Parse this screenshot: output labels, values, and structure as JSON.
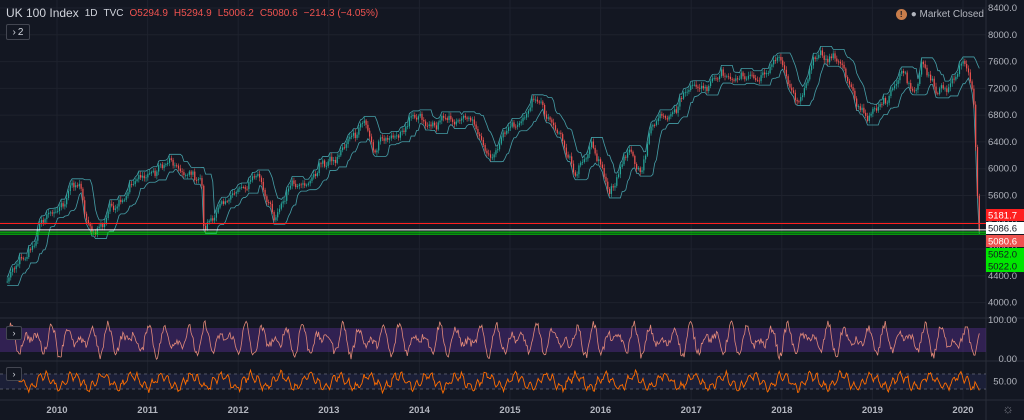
{
  "header": {
    "symbol": "UK 100 Index",
    "interval": "1D",
    "source": "TVC",
    "open": "O5294.9",
    "high": "H5294.9",
    "low": "L5006.2",
    "close": "C5080.6",
    "change": "−214.3 (−4.05%)",
    "collapse_count": "2"
  },
  "market_status": {
    "icon": "!",
    "label": "● Market Closed"
  },
  "colors": {
    "background": "#131722",
    "grid": "#1e222d",
    "up": "#26a69a",
    "down": "#ef5350",
    "channel": "#4fb7c0",
    "stoch_k": "#e38a7a",
    "stoch_band": "#4a2a7a",
    "macd": "#ff6d00"
  },
  "chart_data": [
    {
      "type": "candlestick",
      "title": "UK 100 Index · 1D · TVC",
      "x_ticks": [
        "2010",
        "2011",
        "2012",
        "2013",
        "2014",
        "2015",
        "2016",
        "2017",
        "2018",
        "2019",
        "2020"
      ],
      "y_ticks": [
        "4000.0",
        "4400.0",
        "4800.0",
        "5200.0",
        "5600.0",
        "6000.0",
        "6400.0",
        "6800.0",
        "7200.0",
        "7600.0",
        "8000.0",
        "8400.0"
      ],
      "ylim": [
        3800,
        8400
      ],
      "series_anchors": [
        {
          "t": 2009.45,
          "v": 4300
        },
        {
          "t": 2009.65,
          "v": 4700
        },
        {
          "t": 2009.85,
          "v": 5200
        },
        {
          "t": 2010.0,
          "v": 5400
        },
        {
          "t": 2010.15,
          "v": 5700
        },
        {
          "t": 2010.25,
          "v": 5700
        },
        {
          "t": 2010.35,
          "v": 5150
        },
        {
          "t": 2010.5,
          "v": 5100
        },
        {
          "t": 2010.6,
          "v": 5400
        },
        {
          "t": 2010.75,
          "v": 5650
        },
        {
          "t": 2010.9,
          "v": 5800
        },
        {
          "t": 2011.05,
          "v": 6000
        },
        {
          "t": 2011.3,
          "v": 6050
        },
        {
          "t": 2011.5,
          "v": 5900
        },
        {
          "t": 2011.6,
          "v": 5700
        },
        {
          "t": 2011.62,
          "v": 5100
        },
        {
          "t": 2011.75,
          "v": 5400
        },
        {
          "t": 2011.9,
          "v": 5500
        },
        {
          "t": 2012.0,
          "v": 5700
        },
        {
          "t": 2012.2,
          "v": 5900
        },
        {
          "t": 2012.4,
          "v": 5300
        },
        {
          "t": 2012.6,
          "v": 5750
        },
        {
          "t": 2012.8,
          "v": 5850
        },
        {
          "t": 2013.0,
          "v": 6100
        },
        {
          "t": 2013.3,
          "v": 6500
        },
        {
          "t": 2013.4,
          "v": 6800
        },
        {
          "t": 2013.5,
          "v": 6250
        },
        {
          "t": 2013.7,
          "v": 6500
        },
        {
          "t": 2014.0,
          "v": 6750
        },
        {
          "t": 2014.2,
          "v": 6650
        },
        {
          "t": 2014.5,
          "v": 6800
        },
        {
          "t": 2014.8,
          "v": 6200
        },
        {
          "t": 2015.0,
          "v": 6600
        },
        {
          "t": 2015.3,
          "v": 7000
        },
        {
          "t": 2015.5,
          "v": 6650
        },
        {
          "t": 2015.7,
          "v": 5950
        },
        {
          "t": 2015.9,
          "v": 6300
        },
        {
          "t": 2016.1,
          "v": 5700
        },
        {
          "t": 2016.3,
          "v": 6200
        },
        {
          "t": 2016.45,
          "v": 6000
        },
        {
          "t": 2016.55,
          "v": 6600
        },
        {
          "t": 2016.8,
          "v": 6900
        },
        {
          "t": 2017.0,
          "v": 7200
        },
        {
          "t": 2017.3,
          "v": 7350
        },
        {
          "t": 2017.5,
          "v": 7400
        },
        {
          "t": 2017.7,
          "v": 7300
        },
        {
          "t": 2017.95,
          "v": 7650
        },
        {
          "t": 2018.1,
          "v": 7200
        },
        {
          "t": 2018.2,
          "v": 7000
        },
        {
          "t": 2018.4,
          "v": 7750
        },
        {
          "t": 2018.6,
          "v": 7650
        },
        {
          "t": 2018.8,
          "v": 7100
        },
        {
          "t": 2018.97,
          "v": 6700
        },
        {
          "t": 2019.2,
          "v": 7200
        },
        {
          "t": 2019.35,
          "v": 7400
        },
        {
          "t": 2019.45,
          "v": 7150
        },
        {
          "t": 2019.55,
          "v": 7600
        },
        {
          "t": 2019.7,
          "v": 7100
        },
        {
          "t": 2019.85,
          "v": 7300
        },
        {
          "t": 2020.0,
          "v": 7550
        },
        {
          "t": 2020.06,
          "v": 7400
        },
        {
          "t": 2020.12,
          "v": 7000
        },
        {
          "t": 2020.18,
          "v": 5080
        }
      ],
      "price_labels": [
        {
          "value": 5181.7,
          "label": "5181.7",
          "bg": "#ff1f1f",
          "fg": "#ffffff"
        },
        {
          "value": 5086.6,
          "label": "5086.6",
          "bg": "#ffffff",
          "fg": "#131722"
        },
        {
          "value": 5080.6,
          "label": "5080.6",
          "bg": "#ef5350",
          "fg": "#ffffff"
        },
        {
          "value": 5052.0,
          "label": "5052.0",
          "bg": "#00e600",
          "fg": "#131722"
        },
        {
          "value": 5022.0,
          "label": "5022.0",
          "bg": "#00e600",
          "fg": "#131722"
        }
      ],
      "horizontal_lines": [
        {
          "value": 5181.7,
          "color": "#ff1f1f"
        },
        {
          "value": 5086.6,
          "color": "#ffffff"
        },
        {
          "value": 5052.0,
          "color": "#00e600"
        },
        {
          "value": 5022.0,
          "color": "#00e600"
        }
      ],
      "grid": true
    },
    {
      "type": "line",
      "panel": "oscillator-1",
      "y_ticks": [
        "100.00",
        "0.00"
      ],
      "ylim": [
        0,
        100
      ],
      "band": [
        20,
        80
      ]
    },
    {
      "type": "line",
      "panel": "oscillator-2",
      "y_ticks": [
        "50.00"
      ],
      "ylim": [
        0,
        100
      ],
      "dashed_levels": [
        70,
        30
      ]
    }
  ],
  "footer": {
    "settings_icon": "gear-icon",
    "settings_glyph": "☼"
  }
}
